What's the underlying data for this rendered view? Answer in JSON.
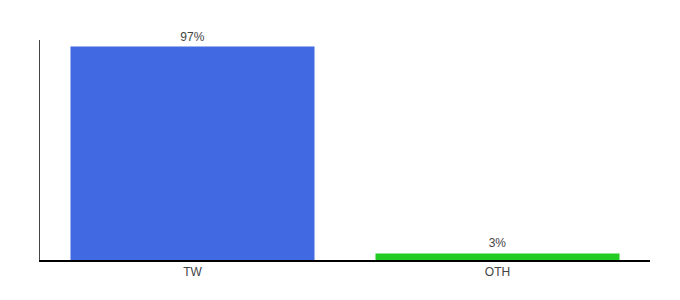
{
  "chart_data": {
    "type": "bar",
    "categories": [
      "TW",
      "OTH"
    ],
    "values": [
      97,
      3
    ],
    "value_labels": [
      "97%",
      "3%"
    ],
    "data_labels": true,
    "colors": [
      "#4169e1",
      "#22cc22"
    ],
    "ylim": [
      0,
      100
    ],
    "grid": false,
    "tick_labels": "x"
  }
}
